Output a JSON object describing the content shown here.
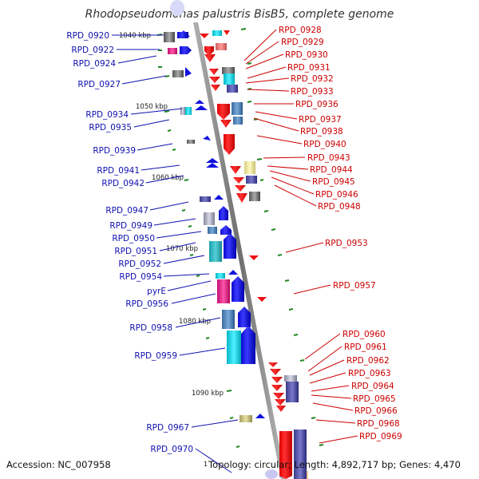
{
  "title": "Rhodopseudomonas palustris BisB5, complete genome",
  "footer": {
    "accession": "Accession: NC_007958",
    "topology": "Topology: circular; Length: 4,892,717 bp; Genes: 4,470",
    "corner_mark": "1"
  },
  "scale_labels": [
    "1040 kbp",
    "1050 kbp",
    "1060 kbp",
    "1070 kbp",
    "1080 kbp",
    "1090 kbp"
  ],
  "left_genes": [
    "RPD_0920",
    "RPD_0922",
    "RPD_0924",
    "RPD_0927",
    "RPD_0934",
    "RPD_0935",
    "RPD_0939",
    "RPD_0941",
    "RPD_0942",
    "RPD_0947",
    "RPD_0949",
    "RPD_0950",
    "RPD_0951",
    "RPD_0952",
    "RPD_0954",
    "pyrE",
    "RPD_0956",
    "RPD_0958",
    "RPD_0959",
    "RPD_0967",
    "RPD_0970"
  ],
  "right_genes": [
    "RPD_0928",
    "RPD_0929",
    "RPD_0930",
    "RPD_0931",
    "RPD_0932",
    "RPD_0933",
    "RPD_0936",
    "RPD_0937",
    "RPD_0938",
    "RPD_0940",
    "RPD_0943",
    "RPD_0944",
    "RPD_0945",
    "RPD_0946",
    "RPD_0948",
    "RPD_0953",
    "RPD_0957",
    "RPD_0960",
    "RPD_0961",
    "RPD_0962",
    "RPD_0963",
    "RPD_0964",
    "RPD_0965",
    "RPD_0966",
    "RPD_0968",
    "RPD_0969"
  ],
  "colors": {
    "forward_strand": "#1010e0",
    "reverse_strand": "#ee1111",
    "left_label": "#1010b0",
    "right_label": "#cc0000",
    "backbone": "#8a8a8a",
    "tick": "#228822"
  }
}
